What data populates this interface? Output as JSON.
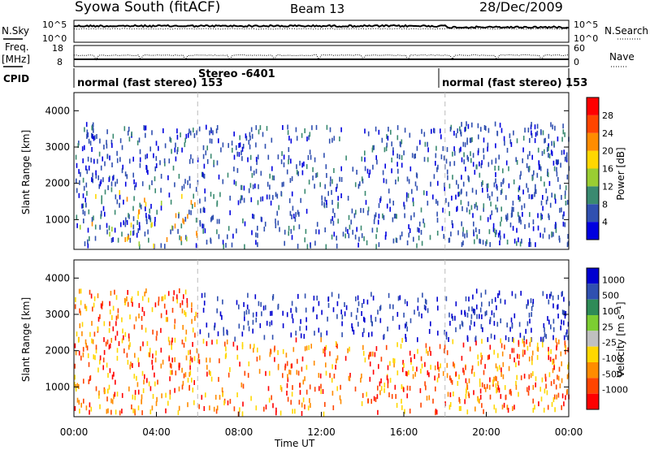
{
  "header": {
    "station": "Syowa South (fitACF)",
    "beam": "Beam 13",
    "date": "28/Dec/2009"
  },
  "noise_panel": {
    "left_label": "N.Sky",
    "right_label": "N.Search",
    "left_ticks": [
      "10^5",
      "10^0"
    ],
    "right_ticks": [
      "10^5",
      "10^0"
    ]
  },
  "freq_panel": {
    "left_label_1": "Freq.",
    "left_label_2": "[MHz]",
    "right_label": "Nave",
    "left_ticks": [
      "18",
      "8"
    ],
    "right_ticks": [
      "60",
      "0"
    ]
  },
  "cpid": {
    "label": "CPID",
    "segments": [
      {
        "start_hour": 0,
        "end_hour": 6,
        "text": "normal (fast stereo) 153"
      },
      {
        "start_hour": 6,
        "end_hour": 18,
        "text": "Stereo -6401"
      },
      {
        "start_hour": 18,
        "end_hour": 24,
        "text": "normal (fast stereo) 153"
      }
    ]
  },
  "chart_data": [
    {
      "type": "heatmap",
      "panel": "power",
      "ylabel": "Slant Range [km]",
      "ylim": [
        180,
        4500
      ],
      "y_ticks": [
        1000,
        2000,
        3000,
        4000
      ],
      "x_range_hours": [
        0,
        24
      ],
      "colorbar": {
        "label": "Power [dB]",
        "ticks": [
          "4",
          "8",
          "12",
          "16",
          "20",
          "24",
          "28"
        ],
        "colors": [
          "#0000e0",
          "#3050b0",
          "#3a8a70",
          "#9acd32",
          "#ffd700",
          "#ff8c00",
          "#ff4500",
          "#ff0000"
        ]
      }
    },
    {
      "type": "heatmap",
      "panel": "velocity",
      "ylabel": "Slant Range [km]",
      "ylim": [
        180,
        4500
      ],
      "y_ticks": [
        1000,
        2000,
        3000,
        4000
      ],
      "x_range_hours": [
        0,
        24
      ],
      "colorbar": {
        "label": "Velocity [m s⁻¹]",
        "ticks": [
          "1000",
          "500",
          "100",
          "25",
          "-25",
          "-100",
          "-500",
          "-1000"
        ],
        "colors": [
          "#0000d0",
          "#3050b0",
          "#2e8b57",
          "#7ccd32",
          "#c0c0c0",
          "#ffd700",
          "#ff8c00",
          "#ff4500",
          "#ff0000"
        ]
      }
    }
  ],
  "x_axis": {
    "label": "Time UT",
    "ticks": [
      "00:00",
      "04:00",
      "08:00",
      "12:00",
      "16:00",
      "20:00",
      "00:00"
    ]
  }
}
